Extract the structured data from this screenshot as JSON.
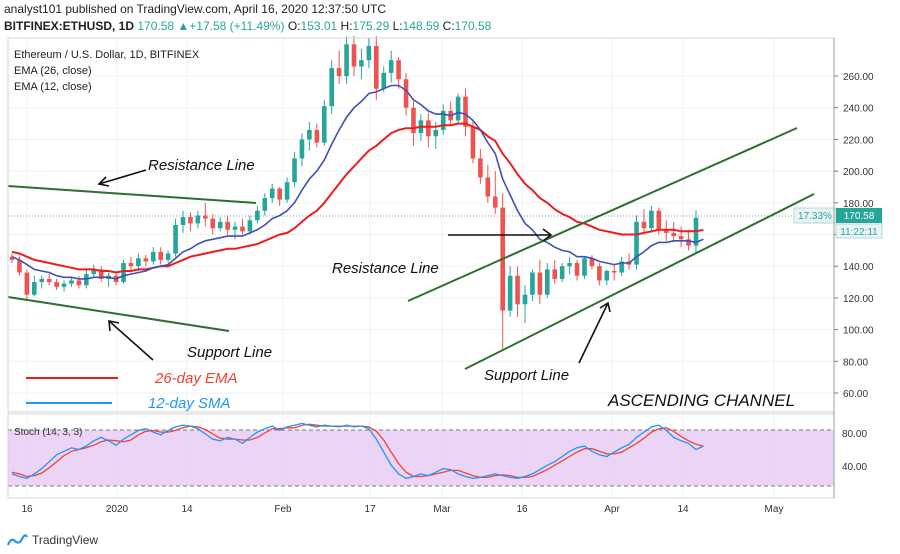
{
  "header": {
    "publisher_line": "analyst101 published on TradingView.com, April 16, 2020 12:37:50 UTC",
    "symbol": "BITFINEX:ETHUSD, 1D",
    "last": "170.58",
    "change": "+17.58 (+11.49%)",
    "open_label": "O:",
    "open": "153.01",
    "high_label": "H:",
    "high": "175.29",
    "low_label": "L:",
    "low": "148.59",
    "close_label": "C:",
    "close": "170.58"
  },
  "legend": {
    "title": "Ethereum / U.S. Dollar, 1D, BITFINEX",
    "ema26": "EMA (26, close)",
    "ema12": "EMA (12, close)"
  },
  "annotations": {
    "resistance_1": "Resistance Line",
    "resistance_2": "Resistance Line",
    "support_1": "Support Line",
    "support_2": "Support Line",
    "ema26_label": "26-day EMA",
    "sma12_label": "12-day SMA",
    "channel": "ASCENDING CHANNEL"
  },
  "price_badges": {
    "percent": "17.33%",
    "price": "170.58",
    "countdown": "11:22:11"
  },
  "stoch": {
    "label": "Stoch (14, 3, 3)",
    "ticks": [
      "80.00",
      "40.00"
    ]
  },
  "colors": {
    "up": "#26a69a",
    "down": "#ef5350",
    "ema26": "#ee1d1d",
    "ema12": "#3f51b5",
    "trendline": "#2e7d32",
    "stoch_k": "#2196f3",
    "stoch_d": "#f44336",
    "stoch_band": "#e1bee7"
  },
  "footer": {
    "brand": "TradingView"
  },
  "chart_data": {
    "type": "candlestick",
    "title": "Ethereum / U.S. Dollar, 1D, BITFINEX",
    "x_ticks": [
      "16",
      "2020",
      "14",
      "Feb",
      "17",
      "Mar",
      "16",
      "Apr",
      "14",
      "May"
    ],
    "y_ticks": [
      60,
      80,
      100,
      120,
      140,
      160,
      180,
      200,
      220,
      240,
      260
    ],
    "ylim": [
      48,
      284
    ],
    "current_price": 170.58,
    "ohlc": [
      [
        146,
        148,
        142,
        144
      ],
      [
        144,
        146,
        134,
        136
      ],
      [
        136,
        138,
        118,
        122
      ],
      [
        122,
        134,
        121,
        130
      ],
      [
        130,
        134,
        126,
        132
      ],
      [
        132,
        135,
        128,
        130
      ],
      [
        130,
        132,
        125,
        127
      ],
      [
        127,
        131,
        124,
        129
      ],
      [
        129,
        133,
        127,
        131
      ],
      [
        131,
        134,
        126,
        128
      ],
      [
        128,
        138,
        126,
        135
      ],
      [
        135,
        141,
        133,
        138
      ],
      [
        138,
        140,
        130,
        132
      ],
      [
        132,
        136,
        127,
        134
      ],
      [
        134,
        137,
        128,
        130
      ],
      [
        130,
        144,
        129,
        142
      ],
      [
        142,
        146,
        136,
        140
      ],
      [
        140,
        148,
        137,
        145
      ],
      [
        145,
        147,
        140,
        143
      ],
      [
        143,
        152,
        141,
        149
      ],
      [
        149,
        152,
        141,
        144
      ],
      [
        144,
        150,
        142,
        148
      ],
      [
        148,
        170,
        146,
        166
      ],
      [
        166,
        175,
        161,
        171
      ],
      [
        171,
        174,
        162,
        167
      ],
      [
        167,
        175,
        164,
        172
      ],
      [
        172,
        180,
        165,
        170
      ],
      [
        170,
        173,
        160,
        164
      ],
      [
        164,
        171,
        162,
        168
      ],
      [
        168,
        172,
        160,
        163
      ],
      [
        163,
        168,
        157,
        165
      ],
      [
        165,
        170,
        160,
        162
      ],
      [
        162,
        172,
        160,
        169
      ],
      [
        169,
        178,
        167,
        175
      ],
      [
        175,
        186,
        172,
        183
      ],
      [
        183,
        192,
        180,
        189
      ],
      [
        189,
        190,
        178,
        182
      ],
      [
        182,
        196,
        180,
        193
      ],
      [
        193,
        212,
        190,
        208
      ],
      [
        208,
        224,
        203,
        220
      ],
      [
        220,
        231,
        213,
        226
      ],
      [
        226,
        230,
        215,
        218
      ],
      [
        218,
        245,
        216,
        241
      ],
      [
        241,
        270,
        236,
        265
      ],
      [
        265,
        276,
        255,
        260
      ],
      [
        260,
        285,
        255,
        280
      ],
      [
        280,
        287,
        260,
        266
      ],
      [
        266,
        277,
        258,
        270
      ],
      [
        270,
        284,
        265,
        279
      ],
      [
        279,
        288,
        245,
        252
      ],
      [
        252,
        266,
        250,
        262
      ],
      [
        262,
        276,
        256,
        270
      ],
      [
        270,
        272,
        252,
        258
      ],
      [
        258,
        262,
        235,
        240
      ],
      [
        240,
        244,
        216,
        224
      ],
      [
        224,
        236,
        219,
        232
      ],
      [
        232,
        237,
        215,
        222
      ],
      [
        222,
        231,
        214,
        226
      ],
      [
        226,
        242,
        223,
        238
      ],
      [
        238,
        244,
        229,
        232
      ],
      [
        232,
        249,
        230,
        247
      ],
      [
        247,
        252,
        222,
        228
      ],
      [
        228,
        232,
        205,
        208
      ],
      [
        208,
        214,
        192,
        196
      ],
      [
        196,
        204,
        180,
        184
      ],
      [
        184,
        200,
        173,
        177
      ],
      [
        177,
        186,
        88,
        112
      ],
      [
        112,
        140,
        108,
        134
      ],
      [
        134,
        140,
        108,
        116
      ],
      [
        116,
        128,
        104,
        122
      ],
      [
        122,
        138,
        118,
        136
      ],
      [
        136,
        144,
        116,
        122
      ],
      [
        122,
        142,
        120,
        138
      ],
      [
        138,
        144,
        129,
        132
      ],
      [
        132,
        142,
        130,
        140
      ],
      [
        140,
        146,
        135,
        142
      ],
      [
        142,
        144,
        131,
        134
      ],
      [
        134,
        146,
        132,
        145
      ],
      [
        145,
        147,
        138,
        140
      ],
      [
        140,
        142,
        128,
        131
      ],
      [
        131,
        138,
        128,
        137
      ],
      [
        137,
        141,
        131,
        136
      ],
      [
        136,
        146,
        134,
        143
      ],
      [
        143,
        148,
        138,
        141
      ],
      [
        141,
        172,
        138,
        168
      ],
      [
        168,
        176,
        160,
        164
      ],
      [
        164,
        178,
        161,
        175
      ],
      [
        175,
        177,
        160,
        163
      ],
      [
        163,
        169,
        156,
        161
      ],
      [
        161,
        168,
        155,
        159
      ],
      [
        159,
        165,
        152,
        157
      ],
      [
        157,
        163,
        150,
        153
      ],
      [
        153,
        175.29,
        148.59,
        170.58
      ]
    ],
    "ema26": [
      149,
      148,
      146,
      144,
      143,
      142,
      141,
      140,
      139,
      138,
      138,
      138,
      137,
      137,
      136,
      137,
      137,
      138,
      138,
      139,
      140,
      140,
      142,
      144,
      146,
      147,
      148,
      149,
      150,
      151,
      151,
      152,
      153,
      154,
      156,
      158,
      160,
      161,
      164,
      168,
      172,
      175,
      180,
      186,
      192,
      198,
      203,
      208,
      213,
      216,
      220,
      224,
      226,
      227,
      227,
      228,
      228,
      228,
      229,
      229,
      230,
      230,
      228,
      226,
      222,
      219,
      211,
      205,
      198,
      192,
      188,
      183,
      180,
      176,
      173,
      171,
      168,
      167,
      165,
      163,
      162,
      161,
      160,
      160,
      160,
      161,
      162,
      163,
      163,
      163,
      162,
      162,
      162,
      163
    ],
    "ema12": [
      146,
      144,
      141,
      138,
      137,
      136,
      134,
      133,
      133,
      132,
      132,
      133,
      133,
      133,
      132,
      134,
      135,
      136,
      137,
      139,
      140,
      141,
      145,
      149,
      151,
      154,
      156,
      157,
      158,
      159,
      159,
      159,
      161,
      163,
      166,
      170,
      172,
      175,
      180,
      188,
      195,
      200,
      207,
      217,
      226,
      234,
      240,
      244,
      249,
      250,
      252,
      254,
      254,
      251,
      245,
      242,
      238,
      236,
      236,
      235,
      237,
      236,
      232,
      226,
      218,
      211,
      195,
      185,
      175,
      167,
      163,
      157,
      155,
      152,
      150,
      149,
      146,
      146,
      145,
      143,
      142,
      141,
      142,
      142,
      146,
      149,
      153,
      155,
      155,
      156,
      156,
      156,
      155,
      157
    ],
    "stoch_k": [
      30,
      27,
      25,
      30,
      36,
      44,
      52,
      56,
      60,
      58,
      62,
      68,
      72,
      68,
      63,
      70,
      75,
      80,
      82,
      78,
      75,
      80,
      84,
      86,
      85,
      82,
      76,
      70,
      68,
      72,
      70,
      65,
      72,
      78,
      82,
      85,
      80,
      84,
      86,
      88,
      86,
      84,
      86,
      85,
      84,
      86,
      84,
      85,
      82,
      70,
      55,
      40,
      30,
      25,
      27,
      30,
      28,
      32,
      36,
      35,
      30,
      27,
      25,
      26,
      28,
      30,
      28,
      26,
      25,
      27,
      30,
      35,
      40,
      44,
      50,
      56,
      60,
      62,
      56,
      52,
      50,
      55,
      60,
      64,
      72,
      78,
      84,
      86,
      80,
      72,
      68,
      65,
      58,
      62
    ],
    "stoch_d": [
      32,
      30,
      27,
      28,
      31,
      37,
      44,
      51,
      56,
      58,
      60,
      63,
      67,
      69,
      68,
      67,
      69,
      75,
      79,
      80,
      78,
      78,
      80,
      83,
      85,
      84,
      81,
      76,
      71,
      70,
      70,
      69,
      69,
      72,
      77,
      82,
      82,
      83,
      83,
      86,
      87,
      86,
      85,
      85,
      85,
      85,
      85,
      85,
      84,
      79,
      69,
      55,
      42,
      32,
      27,
      27,
      28,
      30,
      32,
      34,
      34,
      31,
      28,
      26,
      26,
      28,
      29,
      28,
      26,
      26,
      27,
      31,
      35,
      40,
      45,
      50,
      55,
      59,
      59,
      56,
      53,
      53,
      55,
      60,
      65,
      71,
      78,
      82,
      83,
      79,
      73,
      68,
      64,
      62
    ]
  }
}
